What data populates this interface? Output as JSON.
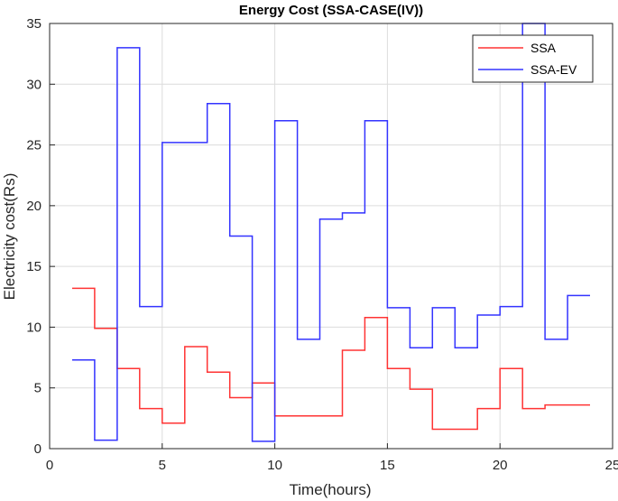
{
  "chart_data": {
    "type": "line",
    "step": true,
    "title": "Energy Cost (SSA-CASE(IV))",
    "xlabel": "Time(hours)",
    "ylabel": "Electricity cost(Rs)",
    "xlim": [
      0,
      25
    ],
    "ylim": [
      0,
      35
    ],
    "xticks": [
      0,
      5,
      10,
      15,
      20,
      25
    ],
    "yticks": [
      0,
      5,
      10,
      15,
      20,
      25,
      30,
      35
    ],
    "grid": true,
    "legend_position": "top-right",
    "x": [
      1,
      2,
      3,
      4,
      5,
      6,
      7,
      8,
      9,
      10,
      11,
      12,
      13,
      14,
      15,
      16,
      17,
      18,
      19,
      20,
      21,
      22,
      23,
      24
    ],
    "series": [
      {
        "name": "SSA",
        "color": "#ff3333",
        "values": [
          13.2,
          9.9,
          6.6,
          3.3,
          2.1,
          8.4,
          6.3,
          4.2,
          5.4,
          2.7,
          2.7,
          2.7,
          8.1,
          10.8,
          6.6,
          4.9,
          1.6,
          1.6,
          3.3,
          6.6,
          3.3,
          3.6,
          3.6,
          3.6
        ]
      },
      {
        "name": "SSA-EV",
        "color": "#3333ff",
        "values": [
          7.3,
          0.7,
          33.0,
          11.7,
          25.2,
          25.2,
          28.4,
          17.5,
          0.6,
          27.0,
          9.0,
          18.9,
          19.4,
          27.0,
          11.6,
          8.3,
          11.6,
          8.3,
          11.0,
          11.7,
          35.0,
          9.0,
          12.6,
          12.6
        ]
      }
    ]
  }
}
